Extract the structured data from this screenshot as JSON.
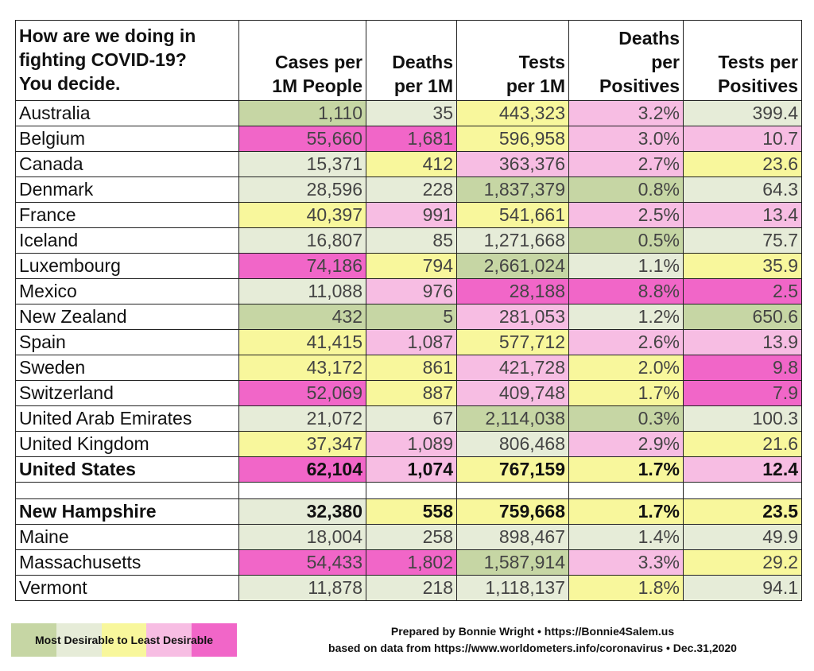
{
  "title_lines": [
    "How are we doing in",
    "fighting COVID-19?",
    "You decide."
  ],
  "headers": [
    [
      "",
      "Cases per",
      "1M People"
    ],
    [
      "",
      "Deaths",
      "per 1M"
    ],
    [
      "",
      "Tests",
      "per 1M"
    ],
    [
      "Deaths",
      "per",
      "Positives"
    ],
    [
      "",
      "Tests per",
      "Positives"
    ]
  ],
  "colors": {
    "most_desirable": "#c6d6a4",
    "desirable": "#e6ecd8",
    "middle": "#f8f79c",
    "less_desirable": "#f7bde3",
    "least_desirable": "#f166c8"
  },
  "chart_data": {
    "type": "table",
    "columns": [
      "Cases per 1M People",
      "Deaths per 1M",
      "Tests per 1M",
      "Deaths per Positives",
      "Tests per Positives"
    ],
    "rows": [
      {
        "name": "Australia",
        "values": [
          "1,110",
          "35",
          "443,323",
          "3.2%",
          "399.4"
        ],
        "colors": [
          "g",
          "lg",
          "y",
          "p",
          "lg"
        ]
      },
      {
        "name": "Belgium",
        "values": [
          "55,660",
          "1,681",
          "596,958",
          "3.0%",
          "10.7"
        ],
        "colors": [
          "m",
          "m",
          "y",
          "p",
          "p"
        ]
      },
      {
        "name": "Canada",
        "values": [
          "15,371",
          "412",
          "363,376",
          "2.7%",
          "23.6"
        ],
        "colors": [
          "lg",
          "y",
          "p",
          "p",
          "y"
        ]
      },
      {
        "name": "Denmark",
        "values": [
          "28,596",
          "228",
          "1,837,379",
          "0.8%",
          "64.3"
        ],
        "colors": [
          "lg",
          "lg",
          "g",
          "g",
          "lg"
        ]
      },
      {
        "name": "France",
        "values": [
          "40,397",
          "991",
          "541,661",
          "2.5%",
          "13.4"
        ],
        "colors": [
          "y",
          "p",
          "y",
          "p",
          "p"
        ]
      },
      {
        "name": "Iceland",
        "values": [
          "16,807",
          "85",
          "1,271,668",
          "0.5%",
          "75.7"
        ],
        "colors": [
          "lg",
          "lg",
          "lg",
          "g",
          "lg"
        ]
      },
      {
        "name": "Luxembourg",
        "values": [
          "74,186",
          "794",
          "2,661,024",
          "1.1%",
          "35.9"
        ],
        "colors": [
          "m",
          "y",
          "g",
          "lg",
          "y"
        ]
      },
      {
        "name": "Mexico",
        "values": [
          "11,088",
          "976",
          "28,188",
          "8.8%",
          "2.5"
        ],
        "colors": [
          "lg",
          "p",
          "m",
          "m",
          "m"
        ]
      },
      {
        "name": "New Zealand",
        "values": [
          "432",
          "5",
          "281,053",
          "1.2%",
          "650.6"
        ],
        "colors": [
          "g",
          "g",
          "p",
          "lg",
          "g"
        ]
      },
      {
        "name": "Spain",
        "values": [
          "41,415",
          "1,087",
          "577,712",
          "2.6%",
          "13.9"
        ],
        "colors": [
          "y",
          "p",
          "y",
          "p",
          "p"
        ]
      },
      {
        "name": "Sweden",
        "values": [
          "43,172",
          "861",
          "421,728",
          "2.0%",
          "9.8"
        ],
        "colors": [
          "y",
          "y",
          "p",
          "y",
          "m"
        ]
      },
      {
        "name": "Switzerland",
        "values": [
          "52,069",
          "887",
          "409,748",
          "1.7%",
          "7.9"
        ],
        "colors": [
          "m",
          "y",
          "p",
          "y",
          "m"
        ]
      },
      {
        "name": "United Arab Emirates",
        "values": [
          "21,072",
          "67",
          "2,114,038",
          "0.3%",
          "100.3"
        ],
        "colors": [
          "lg",
          "lg",
          "g",
          "g",
          "lg"
        ]
      },
      {
        "name": "United Kingdom",
        "values": [
          "37,347",
          "1,089",
          "806,468",
          "2.9%",
          "21.6"
        ],
        "colors": [
          "y",
          "p",
          "lg",
          "p",
          "y"
        ]
      },
      {
        "name": "United States",
        "values": [
          "62,104",
          "1,074",
          "767,159",
          "1.7%",
          "12.4"
        ],
        "colors": [
          "m",
          "p",
          "y",
          "y",
          "p"
        ],
        "bold": true
      },
      {
        "spacer": true
      },
      {
        "name": "New Hampshire",
        "values": [
          "32,380",
          "558",
          "759,668",
          "1.7%",
          "23.5"
        ],
        "colors": [
          "lg",
          "y",
          "y",
          "y",
          "y"
        ],
        "bold": true
      },
      {
        "name": "Maine",
        "values": [
          "18,004",
          "258",
          "898,467",
          "1.4%",
          "49.9"
        ],
        "colors": [
          "lg",
          "lg",
          "lg",
          "lg",
          "lg"
        ]
      },
      {
        "name": "Massachusetts",
        "values": [
          "54,433",
          "1,802",
          "1,587,914",
          "3.3%",
          "29.2"
        ],
        "colors": [
          "m",
          "m",
          "g",
          "p",
          "y"
        ]
      },
      {
        "name": "Vermont",
        "values": [
          "11,878",
          "218",
          "1,118,137",
          "1.8%",
          "94.1"
        ],
        "colors": [
          "lg",
          "lg",
          "lg",
          "y",
          "lg"
        ]
      }
    ]
  },
  "legend": {
    "label": "Most Desirable to Least Desirable"
  },
  "credits": {
    "line1": "Prepared by Bonnie Wright • https://Bonnie4Salem.us",
    "line2": "based on data from https://www.worldometers.info/coronavirus • Dec.31,2020"
  }
}
